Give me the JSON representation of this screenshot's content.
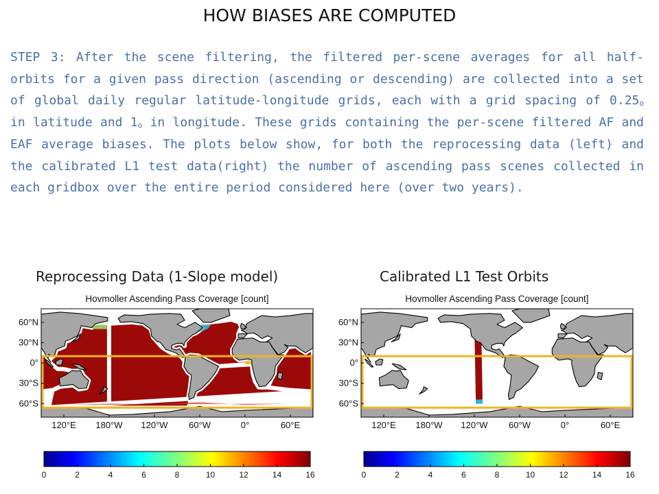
{
  "slide": {
    "title": "HOW BIASES ARE COMPUTED",
    "paragraph": {
      "part1": "STEP 3: After the scene filtering, the filtered per-scene averages for all half-orbits for a given pass direction (ascending or descending) are collected into a set of global daily regular latitude-longitude grids, each with a grid spacing of 0.25",
      "sub1": "o",
      "part2": " in latitude and 1",
      "sub2": "o",
      "part3": " in longitude. These grids containing the per-scene filtered AF and EAF average biases. The plots below show, for both the reprocessing data (left) and the calibrated L1 test data(right) the number of ascending pass scenes collected in each gridbox over the entire period considered here (over two years)."
    },
    "left_label": "Reprocessing Data (1-Slope model)",
    "right_label": "Calibrated L1 Test Orbits"
  },
  "chart_data": [
    {
      "type": "heatmap",
      "title": "Hovmoller Ascending Pass Coverage [count]",
      "x_ticks": [
        "120°E",
        "180°W",
        "120°W",
        "60°W",
        "0°",
        "60°E"
      ],
      "y_ticks": [
        "60°N",
        "30°N",
        "0°",
        "30°S",
        "60°S"
      ],
      "coverage": "global ocean",
      "colorbar": {
        "ticks": [
          0,
          2,
          4,
          6,
          8,
          10,
          12,
          14,
          16
        ],
        "range": [
          0,
          16
        ],
        "colormap": "jet"
      },
      "highlight_box": {
        "lat": [
          -66,
          10
        ],
        "color": "#f0b323"
      },
      "land_color": "#a6a6a6",
      "fill_color": "#9b0a08"
    },
    {
      "type": "heatmap",
      "title": "Hovmoller Ascending Pass Coverage [count]",
      "x_ticks": [
        "120°E",
        "180°W",
        "120°W",
        "60°W",
        "0°",
        "60°E"
      ],
      "y_ticks": [
        "60°N",
        "30°N",
        "0°",
        "30°S",
        "60°S"
      ],
      "coverage": "single orbit strip",
      "colorbar": {
        "ticks": [
          0,
          2,
          4,
          6,
          8,
          10,
          12,
          14,
          16
        ],
        "range": [
          0,
          16
        ],
        "colormap": "jet"
      },
      "highlight_box": {
        "lat": [
          -66,
          10
        ],
        "color": "#f0b323"
      },
      "land_color": "#a6a6a6",
      "fill_color": "#9b0a08"
    }
  ]
}
